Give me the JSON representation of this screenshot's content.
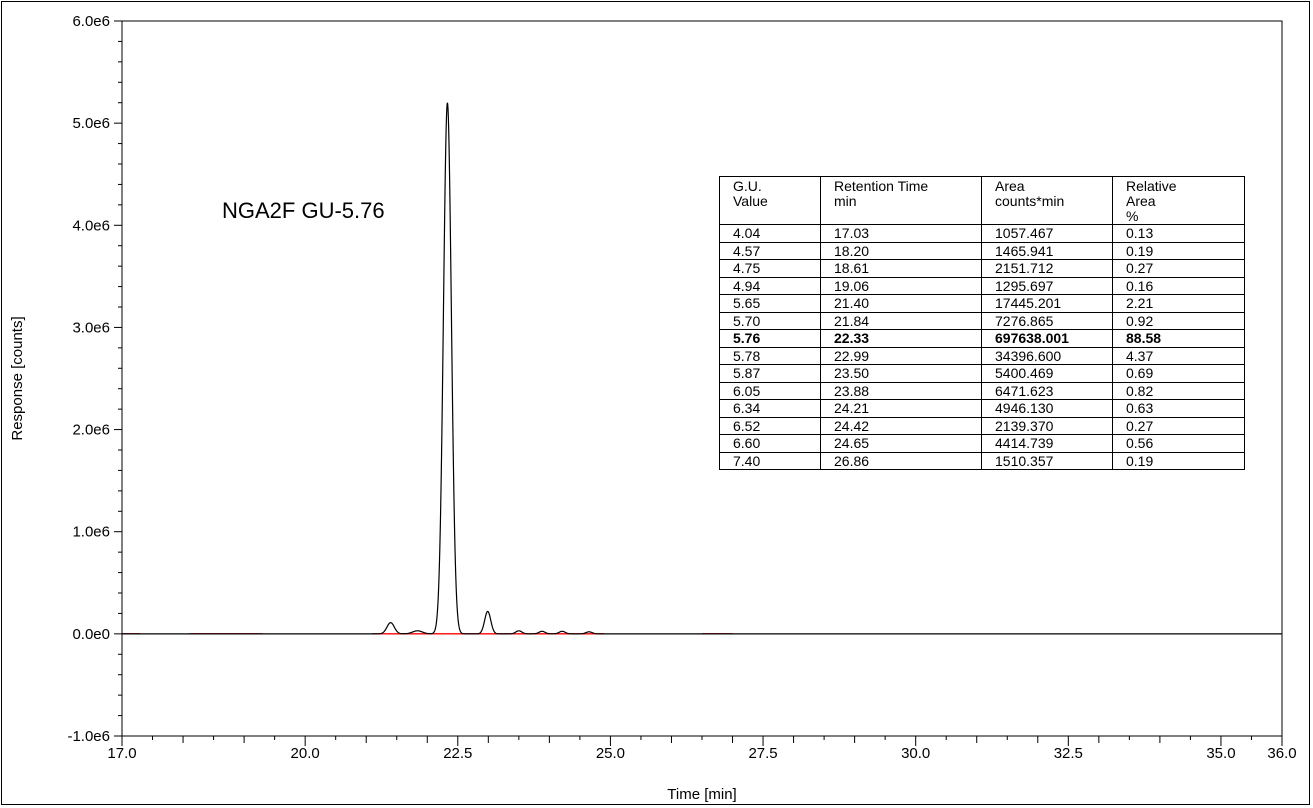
{
  "chart_data": {
    "type": "line",
    "xlabel": "Time [min]",
    "ylabel": "Response [counts]",
    "xlim": [
      17.0,
      36.0
    ],
    "ylim": [
      -1000000,
      6000000
    ],
    "x_ticks": [
      "17.0",
      "20.0",
      "22.5",
      "25.0",
      "27.5",
      "30.0",
      "32.5",
      "35.0",
      "36.0"
    ],
    "x_tick_values": [
      17.0,
      20.0,
      22.5,
      25.0,
      27.5,
      30.0,
      32.5,
      35.0,
      36.0
    ],
    "y_ticks": [
      "6.0e6",
      "5.0e6",
      "4.0e6",
      "3.0e6",
      "2.0e6",
      "1.0e6",
      "0.0e0",
      "-1.0e6"
    ],
    "y_tick_values": [
      6000000,
      5000000,
      4000000,
      3000000,
      2000000,
      1000000,
      0,
      -1000000
    ],
    "trace_color": "#000000",
    "baseline_color": "#ff0000",
    "baseline": 0,
    "peaks": [
      {
        "x": 21.4,
        "y": 110000,
        "width": 0.06
      },
      {
        "x": 21.84,
        "y": 30000,
        "width": 0.08
      },
      {
        "x": 22.33,
        "y": 5200000,
        "width": 0.065
      },
      {
        "x": 22.99,
        "y": 220000,
        "width": 0.05
      },
      {
        "x": 23.5,
        "y": 30000,
        "width": 0.05
      },
      {
        "x": 23.88,
        "y": 25000,
        "width": 0.05
      },
      {
        "x": 24.21,
        "y": 25000,
        "width": 0.05
      },
      {
        "x": 24.65,
        "y": 20000,
        "width": 0.05
      }
    ],
    "baseline_segments": [
      [
        17.0,
        17.3
      ],
      [
        18.1,
        19.3
      ],
      [
        21.1,
        24.9
      ],
      [
        26.5,
        27.0
      ]
    ],
    "annotation": "NGA2F GU-5.76"
  },
  "table": {
    "headers": [
      [
        "G.U.",
        "Value"
      ],
      [
        "Retention Time",
        "min"
      ],
      [
        "Area",
        "counts*min"
      ],
      [
        "Relative",
        "Area",
        "%"
      ]
    ],
    "rows": [
      [
        "4.04",
        "17.03",
        "1057.467",
        "0.13"
      ],
      [
        "4.57",
        "18.20",
        "1465.941",
        "0.19"
      ],
      [
        "4.75",
        "18.61",
        "2151.712",
        "0.27"
      ],
      [
        "4.94",
        "19.06",
        "1295.697",
        "0.16"
      ],
      [
        "5.65",
        "21.40",
        "17445.201",
        "2.21"
      ],
      [
        "5.70",
        "21.84",
        "7276.865",
        "0.92"
      ],
      [
        "5.76",
        "22.33",
        "697638.001",
        "88.58"
      ],
      [
        "5.78",
        "22.99",
        "34396.600",
        "4.37"
      ],
      [
        "5.87",
        "23.50",
        "5400.469",
        "0.69"
      ],
      [
        "6.05",
        "23.88",
        "6471.623",
        "0.82"
      ],
      [
        "6.34",
        "24.21",
        "4946.130",
        "0.63"
      ],
      [
        "6.52",
        "24.42",
        "2139.370",
        "0.27"
      ],
      [
        "6.60",
        "24.65",
        "4414.739",
        "0.56"
      ],
      [
        "7.40",
        "26.86",
        "1510.357",
        "0.19"
      ]
    ],
    "highlighted_row": 6
  }
}
